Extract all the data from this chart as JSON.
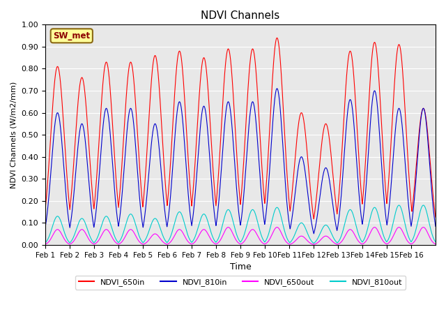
{
  "title": "NDVI Channels",
  "xlabel": "Time",
  "ylabel": "NDVI Channels (W/m2/mm)",
  "ylim": [
    0.0,
    1.0
  ],
  "yticks": [
    0.0,
    0.1,
    0.2,
    0.3,
    0.4,
    0.5,
    0.6,
    0.7,
    0.8,
    0.9,
    1.0
  ],
  "xtick_positions": [
    0,
    1,
    2,
    3,
    4,
    5,
    6,
    7,
    8,
    9,
    10,
    11,
    12,
    13,
    14,
    15
  ],
  "xtick_labels": [
    "Feb 1",
    "Feb 2",
    "Feb 3",
    "Feb 4",
    "Feb 5",
    "Feb 6",
    "Feb 7",
    "Feb 8",
    "Feb 9",
    "Feb 10",
    "Feb 11",
    "Feb 12",
    "Feb 13",
    "Feb 14",
    "Feb 15",
    "Feb 16"
  ],
  "station_label": "SW_met",
  "colors": {
    "NDVI_650in": "#ff0000",
    "NDVI_810in": "#0000cc",
    "NDVI_650out": "#ff00ff",
    "NDVI_810out": "#00cccc"
  },
  "legend_labels": [
    "NDVI_650in",
    "NDVI_810in",
    "NDVI_650out",
    "NDVI_810out"
  ],
  "day_peaks_650in": [
    0.81,
    0.76,
    0.83,
    0.83,
    0.86,
    0.88,
    0.85,
    0.89,
    0.89,
    0.94,
    0.6,
    0.55,
    0.88,
    0.92,
    0.91,
    0.62
  ],
  "day_peaks_810in": [
    0.6,
    0.55,
    0.62,
    0.62,
    0.55,
    0.65,
    0.63,
    0.65,
    0.65,
    0.71,
    0.4,
    0.35,
    0.66,
    0.7,
    0.62,
    0.62
  ],
  "day_peaks_650out": [
    0.07,
    0.07,
    0.07,
    0.07,
    0.05,
    0.07,
    0.07,
    0.08,
    0.07,
    0.08,
    0.04,
    0.04,
    0.07,
    0.08,
    0.08,
    0.08
  ],
  "day_peaks_810out": [
    0.13,
    0.12,
    0.13,
    0.14,
    0.12,
    0.15,
    0.14,
    0.16,
    0.16,
    0.17,
    0.1,
    0.09,
    0.16,
    0.17,
    0.18,
    0.18
  ],
  "n_days": 16,
  "pts_per_day": 200,
  "background_color": "#e8e8e8"
}
